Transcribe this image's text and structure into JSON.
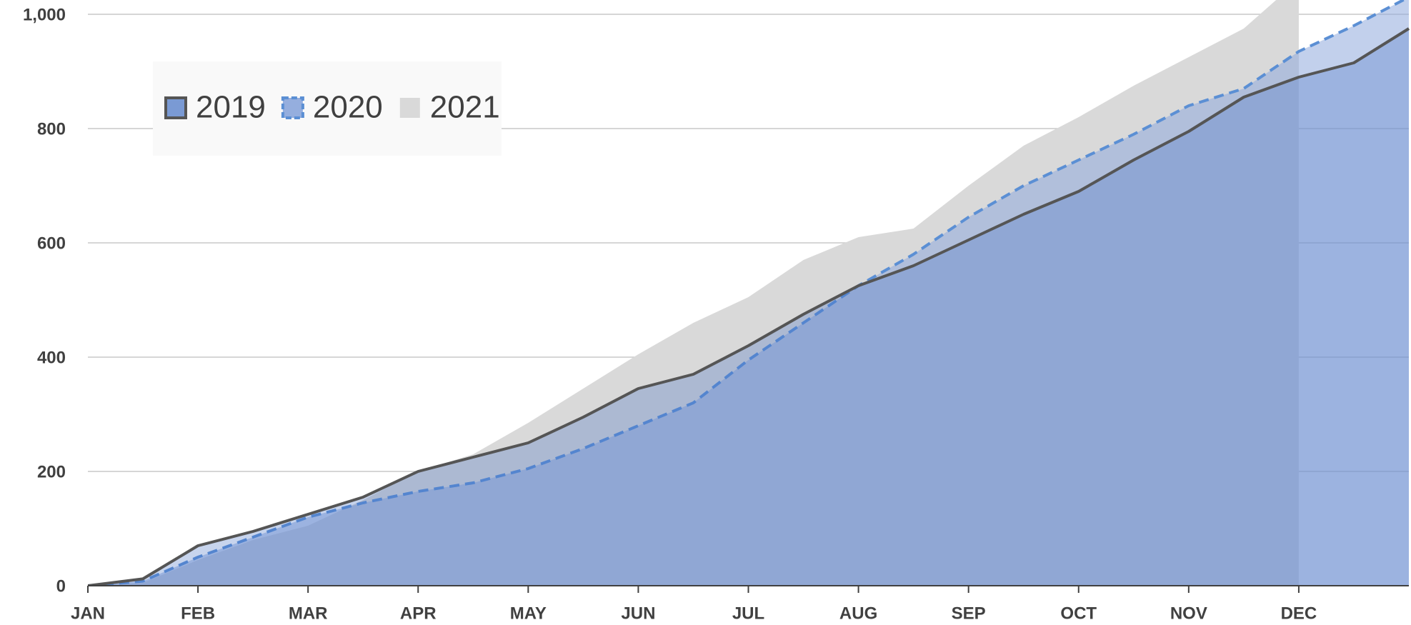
{
  "chart_data": {
    "type": "area",
    "categories": [
      "JAN",
      null,
      "FEB",
      null,
      "MAR",
      null,
      "APR",
      null,
      "MAY",
      null,
      "JUN",
      null,
      "JUL",
      null,
      "AUG",
      null,
      "SEP",
      null,
      "OCT",
      null,
      "NOV",
      null,
      "DEC",
      null,
      null
    ],
    "series": [
      {
        "name": "2021",
        "color": "#d9d9d9",
        "values": [
          0,
          5,
          45,
          80,
          105,
          150,
          200,
          230,
          285,
          345,
          405,
          460,
          505,
          570,
          610,
          625,
          700,
          770,
          820,
          875,
          925,
          975,
          1060,
          null,
          null
        ]
      },
      {
        "name": "2020",
        "color": "#8faadc",
        "values": [
          0,
          8,
          50,
          85,
          120,
          145,
          165,
          180,
          205,
          240,
          280,
          320,
          395,
          460,
          525,
          580,
          645,
          700,
          745,
          790,
          840,
          870,
          935,
          980,
          1030
        ]
      },
      {
        "name": "2019",
        "color": "#4472c4",
        "values": [
          0,
          12,
          70,
          95,
          125,
          155,
          200,
          225,
          250,
          295,
          345,
          370,
          420,
          475,
          525,
          560,
          605,
          650,
          690,
          745,
          795,
          855,
          890,
          915,
          975
        ]
      }
    ],
    "ylim": [
      0,
      1025
    ],
    "yticks": [
      0,
      200,
      400,
      600,
      800,
      {
        "value": 1000,
        "label": "1,000"
      }
    ],
    "grid": true
  }
}
